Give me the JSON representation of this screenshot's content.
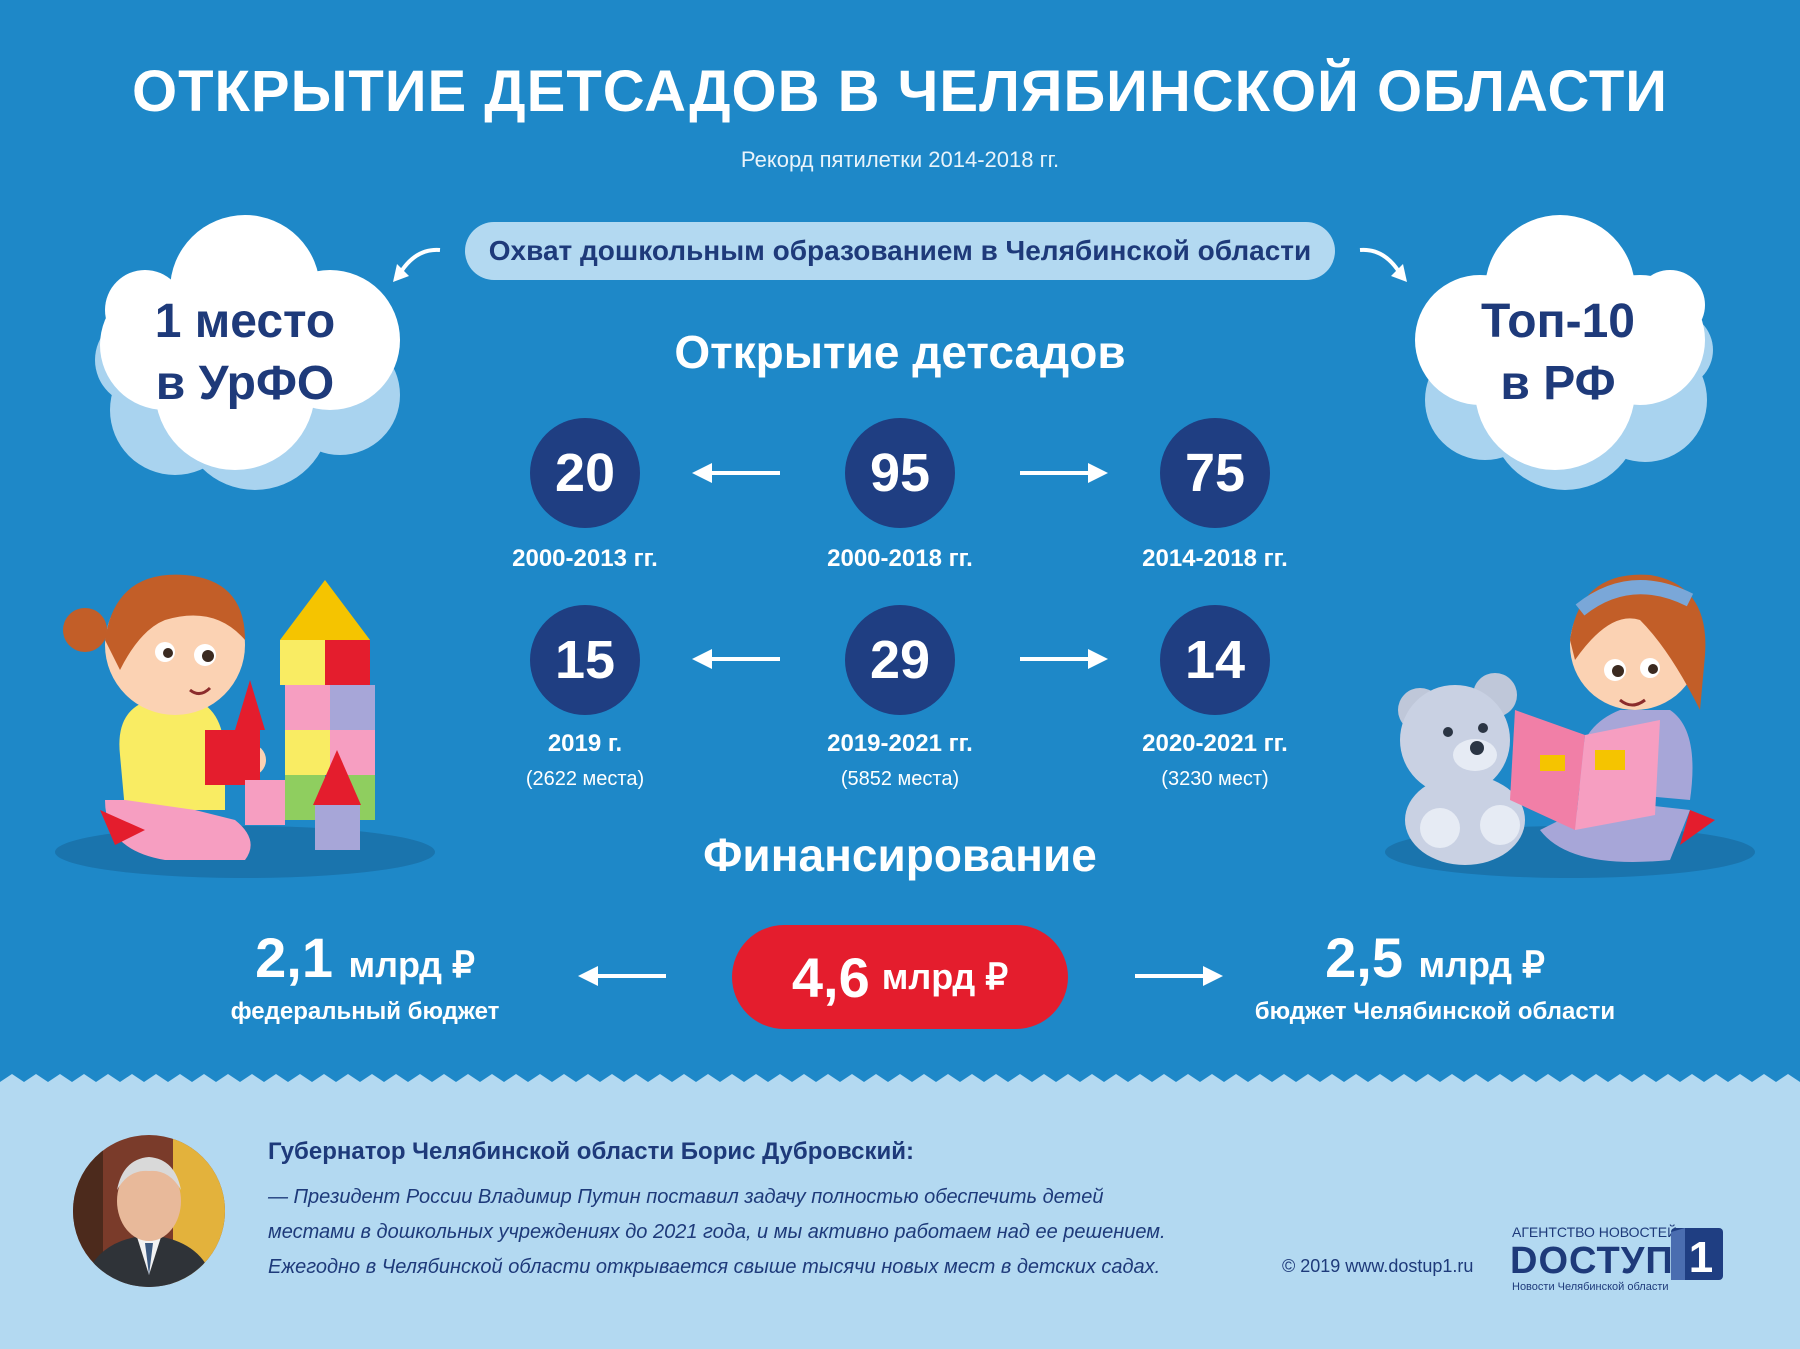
{
  "title": "ОТКРЫТИЕ ДЕТСАДОВ В ЧЕЛЯБИНСКОЙ ОБЛАСТИ",
  "subtitle": "Рекорд пятилетки 2014-2018 гг.",
  "coverage": {
    "label": "Охват дошкольным образованием в Челябинской области",
    "left_cloud": {
      "line1": "1 место",
      "line2": "в УрФО"
    },
    "right_cloud": {
      "line1": "Топ-10",
      "line2": "в РФ"
    }
  },
  "openings": {
    "heading": "Открытие детсадов",
    "row1": [
      {
        "value": "20",
        "period": "2000-2013 гг."
      },
      {
        "value": "95",
        "period": "2000-2018 гг."
      },
      {
        "value": "75",
        "period": "2014-2018 гг."
      }
    ],
    "row2": [
      {
        "value": "15",
        "period": "2019 г.",
        "places": "(2622 места)"
      },
      {
        "value": "29",
        "period": "2019-2021 гг.",
        "places": "(5852 места)"
      },
      {
        "value": "14",
        "period": "2020-2021 гг.",
        "places": "(3230 мест)"
      }
    ]
  },
  "funding": {
    "heading": "Финансирование",
    "total": {
      "value": "4,6",
      "unit": "млрд ₽"
    },
    "federal": {
      "value": "2,1",
      "unit": "млрд ₽",
      "label": "федеральный бюджет"
    },
    "regional": {
      "value": "2,5",
      "unit": "млрд ₽",
      "label": "бюджет Челябинской области"
    }
  },
  "quote": {
    "author": "Губернатор Челябинской области Борис Дубровский:",
    "lines": [
      "— Президент России Владимир Путин поставил задачу полностью обеспечить детей",
      "местами в дошкольных учреждениях до 2021 года, и мы активно работаем над ее решением.",
      "Ежегодно в Челябинской области открывается свыше тысячи новых мест в детских садах."
    ]
  },
  "footer": {
    "copyright": "© 2019 www.dostup1.ru",
    "logo_caption_top": "АГЕНТСТВО НОВОСТЕЙ",
    "logo_name": "DОСТУП",
    "logo_digit": "1",
    "logo_caption_bottom": "Новости Челябинской области"
  },
  "colors": {
    "background": "#1e88c8",
    "dark_blue": "#1f3e82",
    "light_blue": "#b3d9f1",
    "red": "#e41d2d"
  }
}
